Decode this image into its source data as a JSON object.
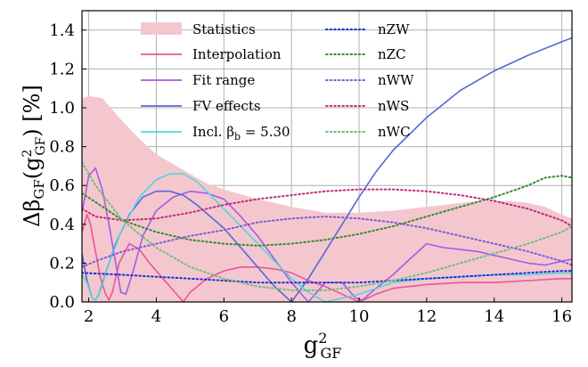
{
  "chart_data": {
    "type": "line",
    "xlabel": "g²GF",
    "ylabel": "Δβ_GF(g²GF) [%]",
    "xlim": [
      1.8,
      16.3
    ],
    "ylim": [
      0.0,
      1.5
    ],
    "x_ticks": [
      2,
      4,
      6,
      8,
      10,
      12,
      14,
      16
    ],
    "y_ticks": [
      0.0,
      0.2,
      0.4,
      0.6,
      0.8,
      1.0,
      1.2,
      1.4
    ],
    "x_tick_labels": [
      "2",
      "4",
      "6",
      "8",
      "10",
      "12",
      "14",
      "16"
    ],
    "y_tick_labels": [
      "0.0",
      "0.2",
      "0.4",
      "0.6",
      "0.8",
      "1.0",
      "1.2",
      "1.4"
    ],
    "grid": true,
    "legend_placement": "top-left, two columns",
    "statistics_band": {
      "name": "Statistics",
      "color": "#f4c7cf",
      "x": [
        1.8,
        2.0,
        2.4,
        3.0,
        3.5,
        4.0,
        4.5,
        5.0,
        5.5,
        6.0,
        7.0,
        8.0,
        9.0,
        10.0,
        11.0,
        12.0,
        12.5,
        13.0,
        13.5,
        14.0,
        14.5,
        15.0,
        15.5,
        16.0,
        16.3
      ],
      "y": [
        1.05,
        1.06,
        1.05,
        0.93,
        0.84,
        0.76,
        0.71,
        0.66,
        0.61,
        0.58,
        0.53,
        0.49,
        0.46,
        0.46,
        0.47,
        0.49,
        0.5,
        0.51,
        0.52,
        0.52,
        0.52,
        0.51,
        0.49,
        0.45,
        0.43
      ]
    },
    "series": [
      {
        "name": "Interpolation",
        "color": "#e8559a",
        "style": "solid",
        "x": [
          1.8,
          1.95,
          2.05,
          2.2,
          2.35,
          2.5,
          2.6,
          2.7,
          2.9,
          3.2,
          3.5,
          3.8,
          4.2,
          4.5,
          4.8,
          5.0,
          5.5,
          6.0,
          6.5,
          7.0,
          7.5,
          8.0,
          8.5,
          9.0,
          9.5,
          10.0,
          10.5,
          11.0,
          12.0,
          13.0,
          14.0,
          15.0,
          16.0,
          16.3
        ],
        "y": [
          0.36,
          0.45,
          0.4,
          0.26,
          0.12,
          0.04,
          0.01,
          0.05,
          0.2,
          0.3,
          0.27,
          0.2,
          0.12,
          0.06,
          0.0,
          0.05,
          0.12,
          0.16,
          0.18,
          0.18,
          0.17,
          0.15,
          0.11,
          0.08,
          0.04,
          0.0,
          0.04,
          0.07,
          0.09,
          0.1,
          0.1,
          0.11,
          0.12,
          0.12
        ]
      },
      {
        "name": "Fit range",
        "color": "#a55ce3",
        "style": "solid",
        "x": [
          1.8,
          1.9,
          2.0,
          2.2,
          2.4,
          2.6,
          2.8,
          2.95,
          3.1,
          3.3,
          3.6,
          4.0,
          4.5,
          5.0,
          5.5,
          6.0,
          6.5,
          7.0,
          7.5,
          8.0,
          8.5,
          9.0,
          9.5,
          9.9,
          10.1,
          10.5,
          11.0,
          11.5,
          12.0,
          12.5,
          13.0,
          13.5,
          14.0,
          14.5,
          15.0,
          15.5,
          16.0,
          16.3
        ],
        "y": [
          0.46,
          0.55,
          0.65,
          0.69,
          0.58,
          0.4,
          0.2,
          0.05,
          0.04,
          0.15,
          0.34,
          0.47,
          0.54,
          0.57,
          0.56,
          0.53,
          0.44,
          0.34,
          0.22,
          0.1,
          0.0,
          0.1,
          0.1,
          0.02,
          0.01,
          0.07,
          0.14,
          0.22,
          0.3,
          0.28,
          0.27,
          0.26,
          0.24,
          0.22,
          0.2,
          0.19,
          0.21,
          0.22
        ]
      },
      {
        "name": "FV effects",
        "color": "#5468d8",
        "style": "solid",
        "x": [
          1.8,
          1.95,
          2.1,
          2.2,
          2.3,
          2.5,
          2.8,
          3.2,
          3.6,
          4.0,
          4.4,
          4.8,
          5.2,
          5.6,
          6.0,
          6.5,
          7.0,
          7.5,
          8.0,
          8.5,
          9.0,
          9.5,
          10.0,
          10.5,
          11.0,
          12.0,
          13.0,
          14.0,
          15.0,
          16.0,
          16.3
        ],
        "y": [
          0.25,
          0.11,
          0.02,
          0.01,
          0.04,
          0.15,
          0.3,
          0.45,
          0.54,
          0.57,
          0.57,
          0.55,
          0.5,
          0.44,
          0.38,
          0.28,
          0.18,
          0.08,
          0.0,
          0.12,
          0.26,
          0.4,
          0.54,
          0.67,
          0.78,
          0.95,
          1.09,
          1.19,
          1.27,
          1.34,
          1.36
        ]
      },
      {
        "name": "Incl. β_b = 5.30",
        "color": "#4fd6dc",
        "style": "solid",
        "x": [
          1.8,
          1.95,
          2.1,
          2.2,
          2.35,
          2.6,
          3.0,
          3.5,
          4.0,
          4.4,
          4.8,
          5.2,
          5.6,
          6.0,
          6.5,
          7.0,
          7.5,
          8.0,
          8.5,
          9.0,
          9.5,
          10.0,
          10.5,
          11.0,
          12.0,
          13.0,
          14.0,
          15.0,
          16.0,
          16.3
        ],
        "y": [
          0.14,
          0.1,
          0.02,
          0.01,
          0.06,
          0.2,
          0.38,
          0.54,
          0.63,
          0.66,
          0.66,
          0.62,
          0.55,
          0.48,
          0.39,
          0.3,
          0.21,
          0.12,
          0.05,
          0.0,
          0.02,
          0.04,
          0.07,
          0.1,
          0.12,
          0.13,
          0.14,
          0.14,
          0.15,
          0.15
        ]
      },
      {
        "name": "nZW",
        "color": "#1f2fd8",
        "style": "dotted",
        "x": [
          1.8,
          3.0,
          4.0,
          5.0,
          6.0,
          7.0,
          8.0,
          9.0,
          10.0,
          11.0,
          12.0,
          13.0,
          14.0,
          15.0,
          16.0,
          16.3
        ],
        "y": [
          0.15,
          0.14,
          0.13,
          0.12,
          0.11,
          0.1,
          0.1,
          0.1,
          0.1,
          0.11,
          0.12,
          0.13,
          0.14,
          0.15,
          0.16,
          0.16
        ]
      },
      {
        "name": "nZC",
        "color": "#2f8f2f",
        "style": "dotted",
        "x": [
          1.8,
          2.5,
          3.0,
          4.0,
          5.0,
          6.0,
          7.0,
          8.0,
          9.0,
          10.0,
          11.0,
          12.0,
          13.0,
          14.0,
          15.0,
          15.5,
          16.0,
          16.3
        ],
        "y": [
          0.56,
          0.48,
          0.42,
          0.36,
          0.32,
          0.3,
          0.29,
          0.3,
          0.32,
          0.35,
          0.39,
          0.44,
          0.49,
          0.54,
          0.6,
          0.64,
          0.65,
          0.64
        ]
      },
      {
        "name": "nWW",
        "color": "#7b5cd6",
        "style": "dotted",
        "x": [
          1.8,
          2.2,
          3.0,
          4.0,
          5.0,
          6.0,
          7.0,
          8.0,
          9.0,
          10.0,
          11.0,
          12.0,
          13.0,
          14.0,
          15.0,
          16.0,
          16.3
        ],
        "y": [
          0.18,
          0.21,
          0.26,
          0.3,
          0.34,
          0.37,
          0.41,
          0.43,
          0.44,
          0.43,
          0.41,
          0.38,
          0.34,
          0.3,
          0.26,
          0.21,
          0.19
        ]
      },
      {
        "name": "nWS",
        "color": "#c02b7a",
        "style": "dotted",
        "x": [
          1.8,
          2.2,
          3.0,
          4.0,
          5.0,
          6.0,
          7.0,
          8.0,
          9.0,
          10.0,
          11.0,
          12.0,
          13.0,
          14.0,
          15.0,
          16.0,
          16.3
        ],
        "y": [
          0.48,
          0.44,
          0.42,
          0.43,
          0.46,
          0.5,
          0.53,
          0.55,
          0.57,
          0.58,
          0.58,
          0.57,
          0.55,
          0.52,
          0.48,
          0.42,
          0.39
        ]
      },
      {
        "name": "nWC",
        "color": "#6fbf7a",
        "style": "dotted",
        "x": [
          1.8,
          2.2,
          3.0,
          4.0,
          5.0,
          6.0,
          7.0,
          8.0,
          9.0,
          10.0,
          11.0,
          12.0,
          13.0,
          14.0,
          15.0,
          16.0,
          16.3
        ],
        "y": [
          0.72,
          0.6,
          0.42,
          0.28,
          0.18,
          0.12,
          0.08,
          0.06,
          0.06,
          0.08,
          0.11,
          0.15,
          0.2,
          0.25,
          0.3,
          0.36,
          0.39
        ]
      }
    ]
  }
}
